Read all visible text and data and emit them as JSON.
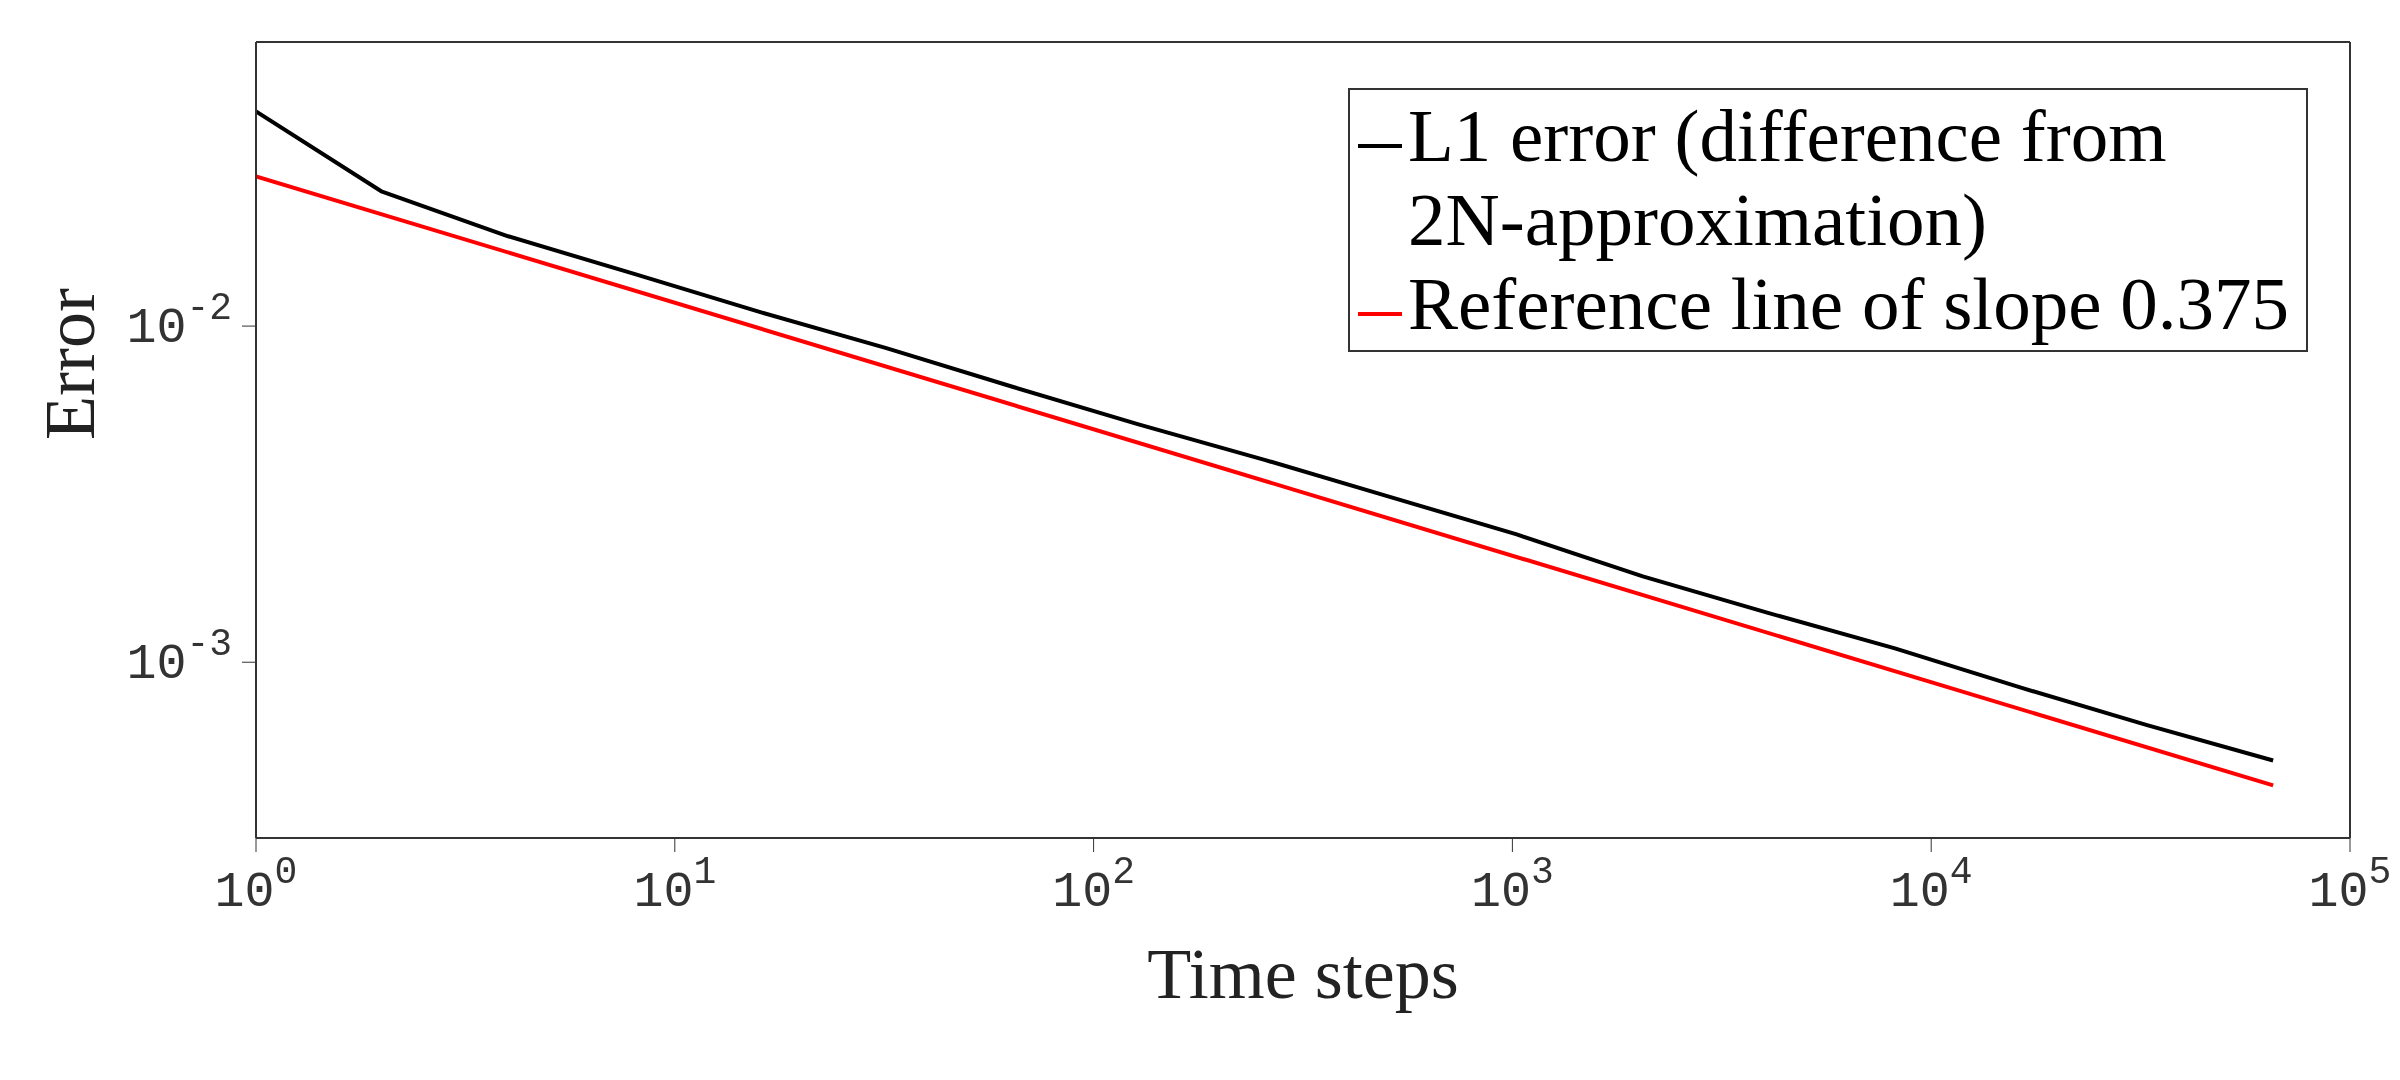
{
  "chart_data": {
    "type": "line",
    "xlabel": "Time steps",
    "ylabel": "Error",
    "log": "xy",
    "xlim": [
      1,
      100000
    ],
    "ylim": [
      0.0003,
      0.07
    ],
    "xticks": [
      {
        "value": 1,
        "label": "10$^{0}$"
      },
      {
        "value": 10,
        "label": "10$^{1}$"
      },
      {
        "value": 100,
        "label": "10$^{2}$"
      },
      {
        "value": 1000,
        "label": "10$^{3}$"
      },
      {
        "value": 10000,
        "label": "10$^{4}$"
      },
      {
        "value": 100000,
        "label": "10$^{5}$"
      }
    ],
    "yticks": [
      {
        "value": 0.001,
        "label": "10$^{-3}$"
      },
      {
        "value": 0.01,
        "label": "10$^{-2}$"
      }
    ],
    "legend": "top right",
    "line_style": "solid",
    "marker": "none",
    "series": [
      {
        "name": "L1 error (difference from 2N-approximation)",
        "color": "#000000",
        "x": [
          1,
          2,
          4,
          8,
          16,
          32,
          64,
          128,
          256,
          512,
          1024,
          2048,
          4096,
          8192,
          16384,
          32768,
          65536
        ],
        "values": [
          0.0435,
          0.0251,
          0.0185,
          0.0143,
          0.011,
          0.0086,
          0.0066,
          0.0051,
          0.004,
          0.0031,
          0.0024,
          0.0018,
          0.0014,
          0.0011,
          0.00084,
          0.00065,
          0.00051
        ]
      },
      {
        "name": "Reference line of slope 0.375",
        "color": "#ff0000",
        "x": [
          1,
          65536
        ],
        "values": [
          0.0279,
          0.00043
        ]
      }
    ]
  }
}
